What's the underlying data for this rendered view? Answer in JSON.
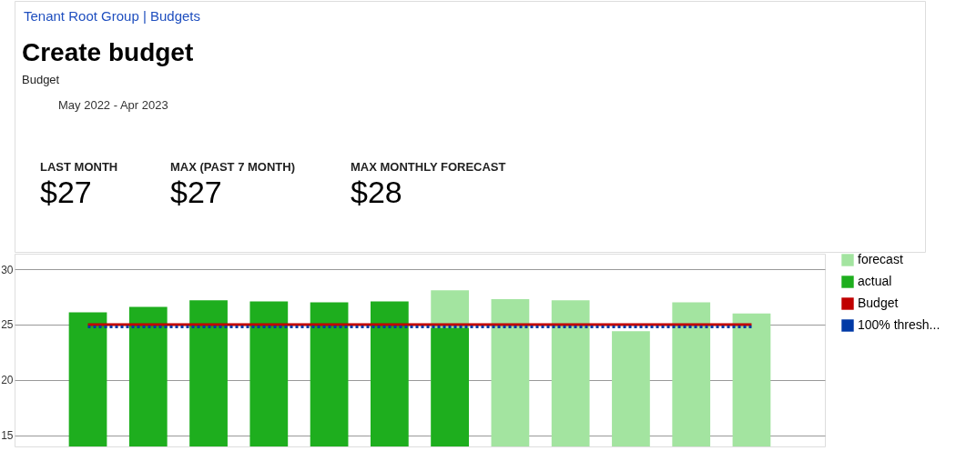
{
  "chart_data": {
    "type": "bar",
    "title": "Create budget",
    "subtitle": "Budget",
    "annotations": [
      "Tenant Root Group | Budgets",
      "May 2022 - Apr 2023",
      "LAST MONTH",
      "MAX (PAST 7 MONTH)",
      "MAX MONTHLY FORECAST",
      "$27",
      "$27",
      "$28"
    ],
    "categories": [
      null,
      null,
      null,
      null,
      null,
      null,
      null,
      null,
      null,
      null,
      null,
      null
    ],
    "series": [
      {
        "name": "forecast",
        "color": "#a3e4a0",
        "values": [
          null,
          null,
          null,
          null,
          null,
          null,
          28.1,
          27.3,
          27.2,
          24.4,
          27.0,
          26.0
        ]
      },
      {
        "name": "actual",
        "color": "#1eae1e",
        "values": [
          26.1,
          26.6,
          27.2,
          27.1,
          27.0,
          27.1,
          24.7,
          null,
          null,
          null,
          null,
          null
        ]
      },
      {
        "name": "Budget",
        "type": "line",
        "line_style": "solid",
        "color": "#c00000",
        "values": [
          25,
          25,
          25,
          25,
          25,
          25,
          25,
          25,
          25,
          25,
          25,
          25
        ]
      },
      {
        "name": "100% thresh...",
        "type": "line",
        "line_style": "dotted",
        "color": "#0039a6",
        "values": [
          24.8,
          24.8,
          24.8,
          24.8,
          24.8,
          24.8,
          24.8,
          24.8,
          24.8,
          24.8,
          24.8,
          24.8
        ]
      }
    ],
    "ylim": [
      14,
      31.4
    ],
    "yticks": [
      15,
      20,
      25,
      30
    ],
    "grid": "y",
    "legend": "right",
    "tick_labels": "y"
  }
}
